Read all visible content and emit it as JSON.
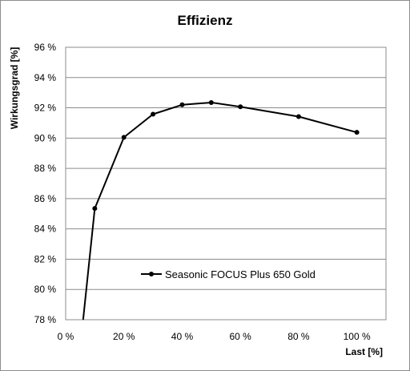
{
  "chart_data": {
    "type": "line",
    "title": "Effizienz",
    "xlabel": "Last [%]",
    "ylabel": "Wirkungsgrad [%]",
    "xlim": [
      0,
      110
    ],
    "ylim": [
      78,
      96
    ],
    "x_ticks": [
      "0 %",
      "20 %",
      "40 %",
      "60 %",
      "80 %",
      "100 %"
    ],
    "y_ticks": [
      "78 %",
      "80 %",
      "82 %",
      "84 %",
      "86 %",
      "88 %",
      "90 %",
      "92 %",
      "94 %",
      "96 %"
    ],
    "grid": {
      "horizontal": true,
      "vertical": false
    },
    "legend_position": "bottom-center",
    "series": [
      {
        "name": "Seasonic FOCUS Plus 650 Gold",
        "color": "#000000",
        "x": [
          10,
          20,
          30,
          40,
          50,
          60,
          80,
          100
        ],
        "y": [
          85.35,
          90.05,
          91.58,
          92.2,
          92.35,
          92.07,
          91.42,
          90.38
        ],
        "line_start": {
          "x": 6,
          "y": 78
        }
      }
    ]
  }
}
